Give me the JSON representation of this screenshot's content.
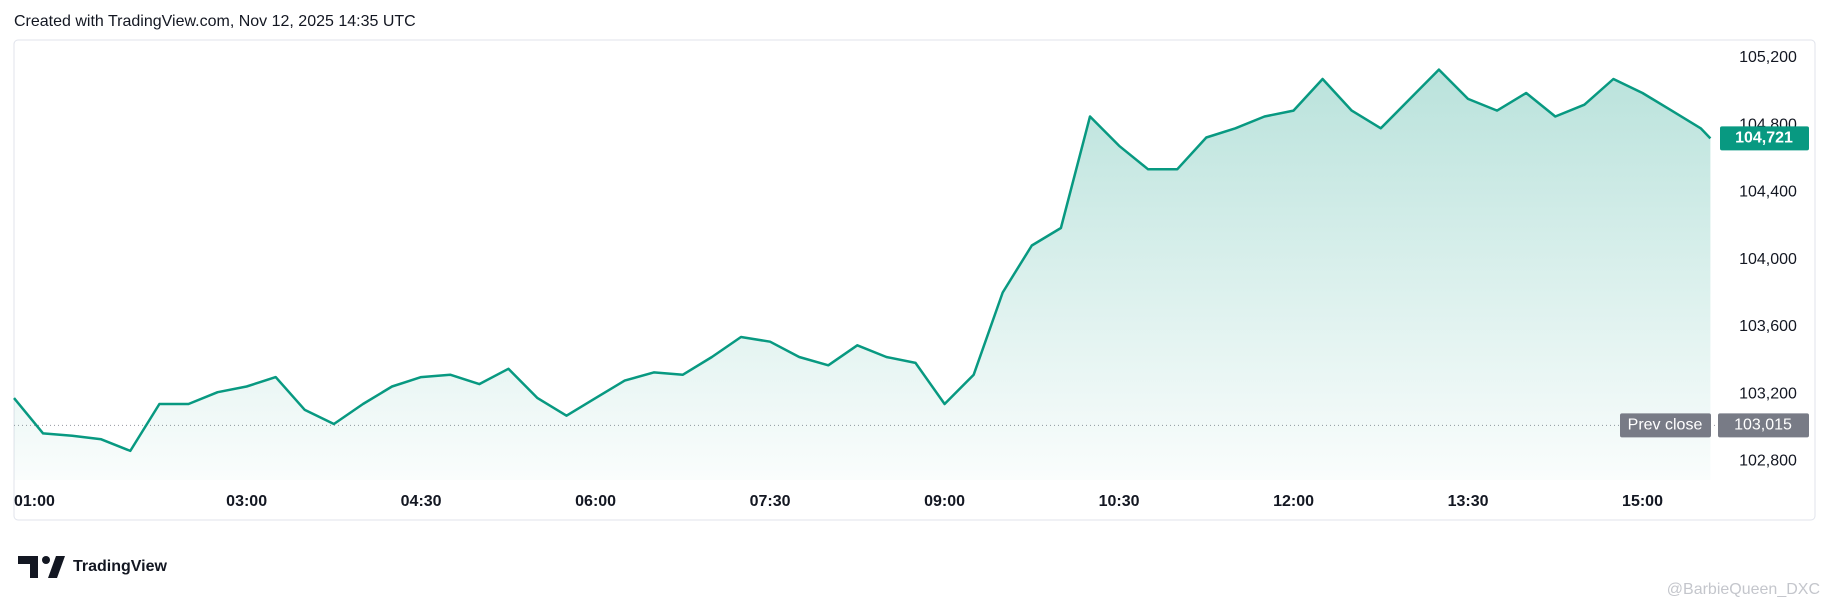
{
  "header": "Created with TradingView.com, Nov 12, 2025 14:35 UTC",
  "logo": "TradingView",
  "watermark": "@BarbieQueen_DXC",
  "chart_data": {
    "type": "area",
    "x": [
      "01:00",
      "01:15",
      "01:30",
      "01:45",
      "02:00",
      "02:15",
      "02:30",
      "02:45",
      "03:00",
      "03:15",
      "03:30",
      "03:45",
      "04:00",
      "04:15",
      "04:30",
      "04:45",
      "05:00",
      "05:15",
      "05:30",
      "05:45",
      "06:00",
      "06:15",
      "06:30",
      "06:45",
      "07:00",
      "07:15",
      "07:30",
      "07:45",
      "08:00",
      "08:15",
      "08:30",
      "08:45",
      "09:00",
      "09:15",
      "09:30",
      "09:45",
      "10:00",
      "10:15",
      "10:30",
      "10:45",
      "11:00",
      "11:15",
      "11:30",
      "11:45",
      "12:00",
      "12:15",
      "12:30",
      "12:45",
      "13:00",
      "13:15",
      "13:30",
      "13:45",
      "14:00",
      "14:15",
      "14:30",
      "14:45",
      "15:00",
      "15:15",
      "15:30",
      "15:35"
    ],
    "series": [
      {
        "color": "#089981",
        "values": [
          103177,
          102967,
          102953,
          102932,
          102863,
          103142,
          103142,
          103212,
          103246,
          103302,
          103107,
          103023,
          103142,
          103246,
          103302,
          103316,
          103260,
          103351,
          103177,
          103072,
          103177,
          103281,
          103330,
          103316,
          103421,
          103540,
          103512,
          103421,
          103372,
          103491,
          103421,
          103386,
          103142,
          103316,
          103805,
          104084,
          104188,
          104851,
          104677,
          104537,
          104537,
          104726,
          104781,
          104851,
          104886,
          105074,
          104886,
          104781,
          104956,
          105130,
          104956,
          104886,
          104991,
          104851,
          104921,
          105074,
          104991,
          104886,
          104781,
          104721
        ]
      }
    ],
    "xlim": [
      "01:00",
      "15:41"
    ],
    "xticks": [
      "01:00",
      "03:00",
      "04:30",
      "06:00",
      "07:30",
      "09:00",
      "10:30",
      "12:00",
      "13:30",
      "15:00"
    ],
    "ylim": [
      102690,
      105300
    ],
    "yticks": [
      {
        "value": 102800,
        "label": "102,800"
      },
      {
        "value": 103200,
        "label": "103,200"
      },
      {
        "value": 103600,
        "label": "103,600"
      },
      {
        "value": 104000,
        "label": "104,000"
      },
      {
        "value": 104400,
        "label": "104,400"
      },
      {
        "value": 104800,
        "label": "104,800"
      },
      {
        "value": 105200,
        "label": "105,200"
      }
    ],
    "prev_close": {
      "name": "Prev close",
      "value": 103015,
      "label": "103,015"
    },
    "last_price": {
      "value": 104721,
      "label": "104,721"
    }
  }
}
